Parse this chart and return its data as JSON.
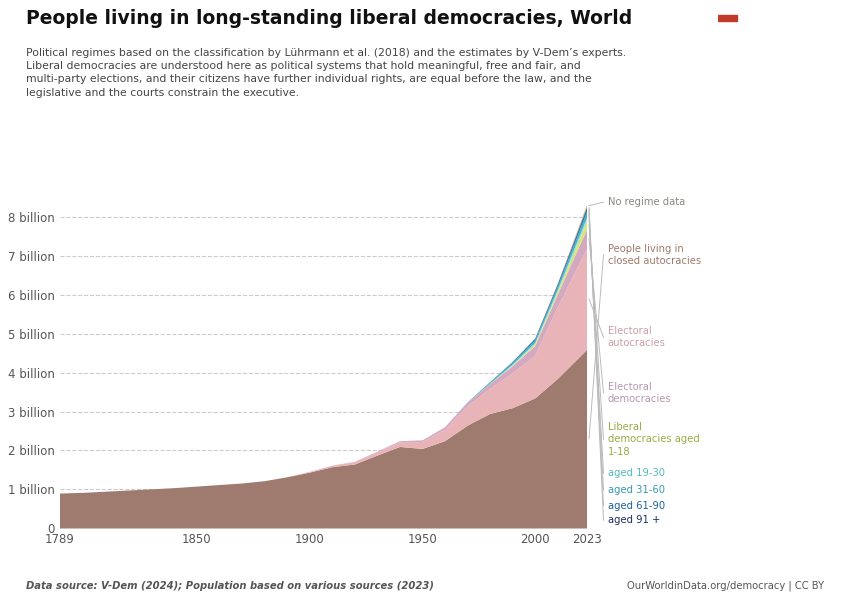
{
  "title": "People living in long-standing liberal democracies, World",
  "subtitle_lines": [
    "Political regimes based on the classification by Lührmann et al. (2018) and the estimates by V-Dem’s experts.",
    "Liberal democracies are understood here as political systems that hold meaningful, free and fair, and",
    "multi-party elections, and their citizens have further individual rights, are equal before the law, and the",
    "legislative and the courts constrain the executive."
  ],
  "source_left": "Data source: V-Dem (2024); Population based on various sources (2023)",
  "source_right": "OurWorldinData.org/democracy | CC BY",
  "years": [
    1789,
    1800,
    1810,
    1820,
    1830,
    1840,
    1850,
    1860,
    1870,
    1880,
    1890,
    1900,
    1910,
    1920,
    1930,
    1940,
    1950,
    1960,
    1970,
    1980,
    1990,
    2000,
    2010,
    2023
  ],
  "series_order": [
    "closed_autocracies",
    "electoral_autocracies",
    "electoral_democracies",
    "lib_dem_1_18",
    "aged_19_30",
    "aged_31_60",
    "aged_61_90",
    "aged_91_plus",
    "no_regime"
  ],
  "series": {
    "closed_autocracies": {
      "label": "People living in\nclosed autocracies",
      "color": "#9e7b6e",
      "values": [
        0.9,
        0.92,
        0.95,
        0.98,
        1.01,
        1.04,
        1.08,
        1.12,
        1.16,
        1.22,
        1.32,
        1.44,
        1.58,
        1.65,
        1.88,
        2.1,
        2.05,
        2.25,
        2.65,
        2.95,
        3.1,
        3.35,
        3.85,
        4.6
      ]
    },
    "electoral_autocracies": {
      "label": "Electoral\nautocracies",
      "color": "#e8b4b8",
      "values": [
        0.0,
        0.0,
        0.0,
        0.0,
        0.0,
        0.0,
        0.0,
        0.0,
        0.0,
        0.0,
        0.0,
        0.02,
        0.04,
        0.06,
        0.08,
        0.12,
        0.18,
        0.3,
        0.5,
        0.65,
        0.9,
        1.1,
        1.85,
        2.6
      ]
    },
    "electoral_democracies": {
      "label": "Electoral\ndemocracies",
      "color": "#d4a8c0",
      "values": [
        0.0,
        0.0,
        0.0,
        0.0,
        0.0,
        0.0,
        0.0,
        0.0,
        0.0,
        0.0,
        0.0,
        0.0,
        0.0,
        0.01,
        0.02,
        0.03,
        0.04,
        0.06,
        0.09,
        0.12,
        0.18,
        0.25,
        0.32,
        0.5
      ]
    },
    "lib_dem_1_18": {
      "label": "Liberal\ndemocracies aged\n1-18",
      "color": "#d4e87a",
      "values": [
        0.0,
        0.0,
        0.0,
        0.0,
        0.0,
        0.0,
        0.0,
        0.0,
        0.0,
        0.0,
        0.0,
        0.0,
        0.0,
        0.0,
        0.0,
        0.0,
        0.0,
        0.0,
        0.0,
        0.01,
        0.02,
        0.04,
        0.07,
        0.2
      ]
    },
    "aged_19_30": {
      "label": "aged 19-30",
      "color": "#a8d8d0",
      "values": [
        0.0,
        0.0,
        0.0,
        0.0,
        0.0,
        0.0,
        0.0,
        0.0,
        0.0,
        0.0,
        0.0,
        0.0,
        0.0,
        0.0,
        0.0,
        0.0,
        0.0,
        0.0,
        0.0,
        0.0,
        0.02,
        0.04,
        0.05,
        0.1
      ]
    },
    "aged_31_60": {
      "label": "aged 31-60",
      "color": "#40b8c8",
      "values": [
        0.0,
        0.0,
        0.0,
        0.0,
        0.0,
        0.0,
        0.0,
        0.0,
        0.0,
        0.0,
        0.0,
        0.0,
        0.0,
        0.0,
        0.0,
        0.0,
        0.0,
        0.0,
        0.01,
        0.03,
        0.05,
        0.07,
        0.09,
        0.16
      ]
    },
    "aged_61_90": {
      "label": "aged 61-90",
      "color": "#2060a0",
      "values": [
        0.0,
        0.0,
        0.0,
        0.0,
        0.0,
        0.0,
        0.0,
        0.0,
        0.0,
        0.0,
        0.0,
        0.0,
        0.0,
        0.0,
        0.0,
        0.0,
        0.0,
        0.0,
        0.0,
        0.01,
        0.02,
        0.03,
        0.04,
        0.07
      ]
    },
    "aged_91_plus": {
      "label": "aged 91 +",
      "color": "#1a3060",
      "values": [
        0.0,
        0.0,
        0.0,
        0.0,
        0.0,
        0.0,
        0.0,
        0.0,
        0.0,
        0.0,
        0.0,
        0.0,
        0.0,
        0.0,
        0.0,
        0.0,
        0.0,
        0.0,
        0.0,
        0.0,
        0.0,
        0.01,
        0.02,
        0.04
      ]
    },
    "no_regime": {
      "label": "No regime data",
      "color": "#c8b898",
      "values": [
        0.0,
        0.0,
        0.0,
        0.0,
        0.0,
        0.0,
        0.0,
        0.0,
        0.0,
        0.0,
        0.0,
        0.0,
        0.0,
        0.0,
        0.0,
        0.0,
        0.0,
        0.0,
        0.0,
        0.0,
        0.0,
        0.0,
        0.0,
        0.07
      ]
    }
  },
  "ytick_vals": [
    0,
    1,
    2,
    3,
    4,
    5,
    6,
    7,
    8
  ],
  "ytick_labels": [
    "0",
    "1 billion",
    "2 billion",
    "3 billion",
    "4 billion",
    "5 billion",
    "6 billion",
    "7 billion",
    "8 billion"
  ],
  "xticks": [
    1789,
    1850,
    1900,
    1950,
    2000,
    2023
  ],
  "xlim": [
    1789,
    2023
  ],
  "ylim": [
    0,
    8.5
  ],
  "background_color": "#ffffff",
  "legend_colors": {
    "no_regime": "#888880",
    "closed_autocracies": "#9e7b6e",
    "electoral_autocracies": "#c8a0a8",
    "electoral_democracies": "#b898b0",
    "lib_dem_1_18": "#9aaa44",
    "aged_19_30": "#55b8b8",
    "aged_31_60": "#3898b0",
    "aged_61_90": "#2060a0",
    "aged_91_plus": "#1a3060"
  }
}
